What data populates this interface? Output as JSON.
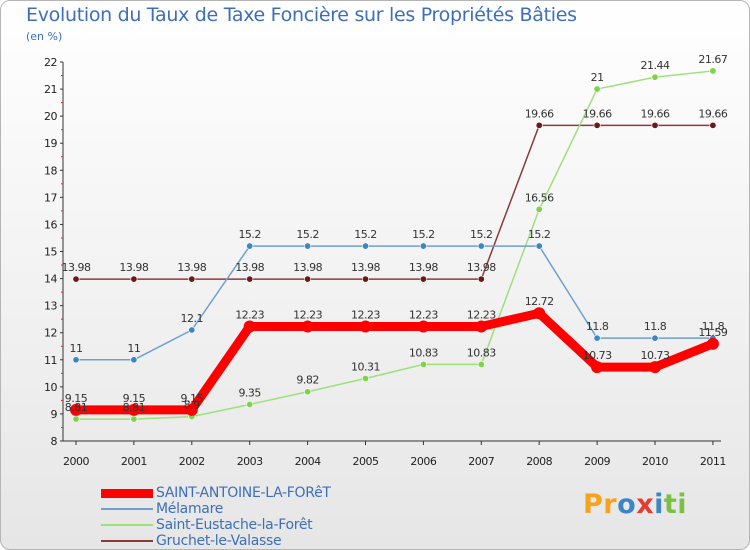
{
  "title": "Evolution du Taux de Taxe Foncière sur les Propriétés Bâties",
  "subtitle": "(en %)",
  "chart_data": {
    "type": "line",
    "title": "Evolution du Taux de Taxe Foncière sur les Propriétés Bâties",
    "ylabel": "(en %)",
    "xlabel": "",
    "ylim": [
      8,
      22
    ],
    "grid": false,
    "legend_position": "bottom-left",
    "categories": [
      "2000",
      "2001",
      "2002",
      "2003",
      "2004",
      "2005",
      "2006",
      "2007",
      "2008",
      "2009",
      "2010",
      "2011"
    ],
    "yticks": [
      "8",
      "9",
      "10",
      "11",
      "12",
      "13",
      "14",
      "15",
      "16",
      "17",
      "18",
      "19",
      "20",
      "21",
      "22"
    ],
    "series": [
      {
        "name": "SAINT-ANTOINE-LA-FORêT",
        "color": "#ff0000",
        "marker": "#ff0000",
        "values": [
          9.15,
          9.15,
          9.15,
          12.23,
          12.23,
          12.23,
          12.23,
          12.23,
          12.72,
          10.73,
          10.73,
          11.59
        ],
        "labels": [
          "9.15",
          "9.15",
          "9.15",
          "12.23",
          "12.23",
          "12.23",
          "12.23",
          "12.23",
          "12.72",
          "10.73",
          "10.73",
          "11.59"
        ]
      },
      {
        "name": "Mélamare",
        "color": "#6d9fcf",
        "marker": "#3d86c6",
        "values": [
          11,
          11,
          12.1,
          15.2,
          15.2,
          15.2,
          15.2,
          15.2,
          15.2,
          11.8,
          11.8,
          11.8
        ],
        "labels": [
          "11",
          "11",
          "12.1",
          "15.2",
          "15.2",
          "15.2",
          "15.2",
          "15.2",
          "15.2",
          "11.8",
          "11.8",
          "11.8"
        ]
      },
      {
        "name": "Saint-Eustache-la-Forêt",
        "color": "#9ee07a",
        "marker": "#7ed346",
        "values": [
          8.81,
          8.81,
          8.9,
          9.35,
          9.82,
          10.31,
          10.83,
          10.83,
          16.56,
          21,
          21.44,
          21.67
        ],
        "labels": [
          "8.81",
          "8.81",
          "8.9",
          "9.35",
          "9.82",
          "10.31",
          "10.83",
          "10.83",
          "16.56",
          "21",
          "21.44",
          "21.67"
        ]
      },
      {
        "name": "Gruchet-le-Valasse",
        "color": "#8b3a3a",
        "marker": "#6b1a1a",
        "values": [
          13.98,
          13.98,
          13.98,
          13.98,
          13.98,
          13.98,
          13.98,
          13.98,
          19.66,
          19.66,
          19.66,
          19.66
        ],
        "labels": [
          "13.98",
          "13.98",
          "13.98",
          "13.98",
          "13.98",
          "13.98",
          "13.98",
          "13.98",
          "19.66",
          "19.66",
          "19.66",
          "19.66"
        ]
      }
    ]
  },
  "legend": [
    {
      "label": "SAINT-ANTOINE-LA-FORêT",
      "color": "#ff0000"
    },
    {
      "label": "Mélamare",
      "color": "#6d9fcf"
    },
    {
      "label": "Saint-Eustache-la-Forêt",
      "color": "#9ee07a"
    },
    {
      "label": "Gruchet-le-Valasse",
      "color": "#8b3a3a"
    }
  ],
  "logo": {
    "letters": [
      "P",
      "r",
      "o",
      "x",
      "i",
      "t",
      "i"
    ],
    "colors": [
      "#f7a21b",
      "#f7a21b",
      "#3d86c6",
      "#e63b2e",
      "#3d86c6",
      "#7ac143",
      "#7ac143"
    ]
  }
}
